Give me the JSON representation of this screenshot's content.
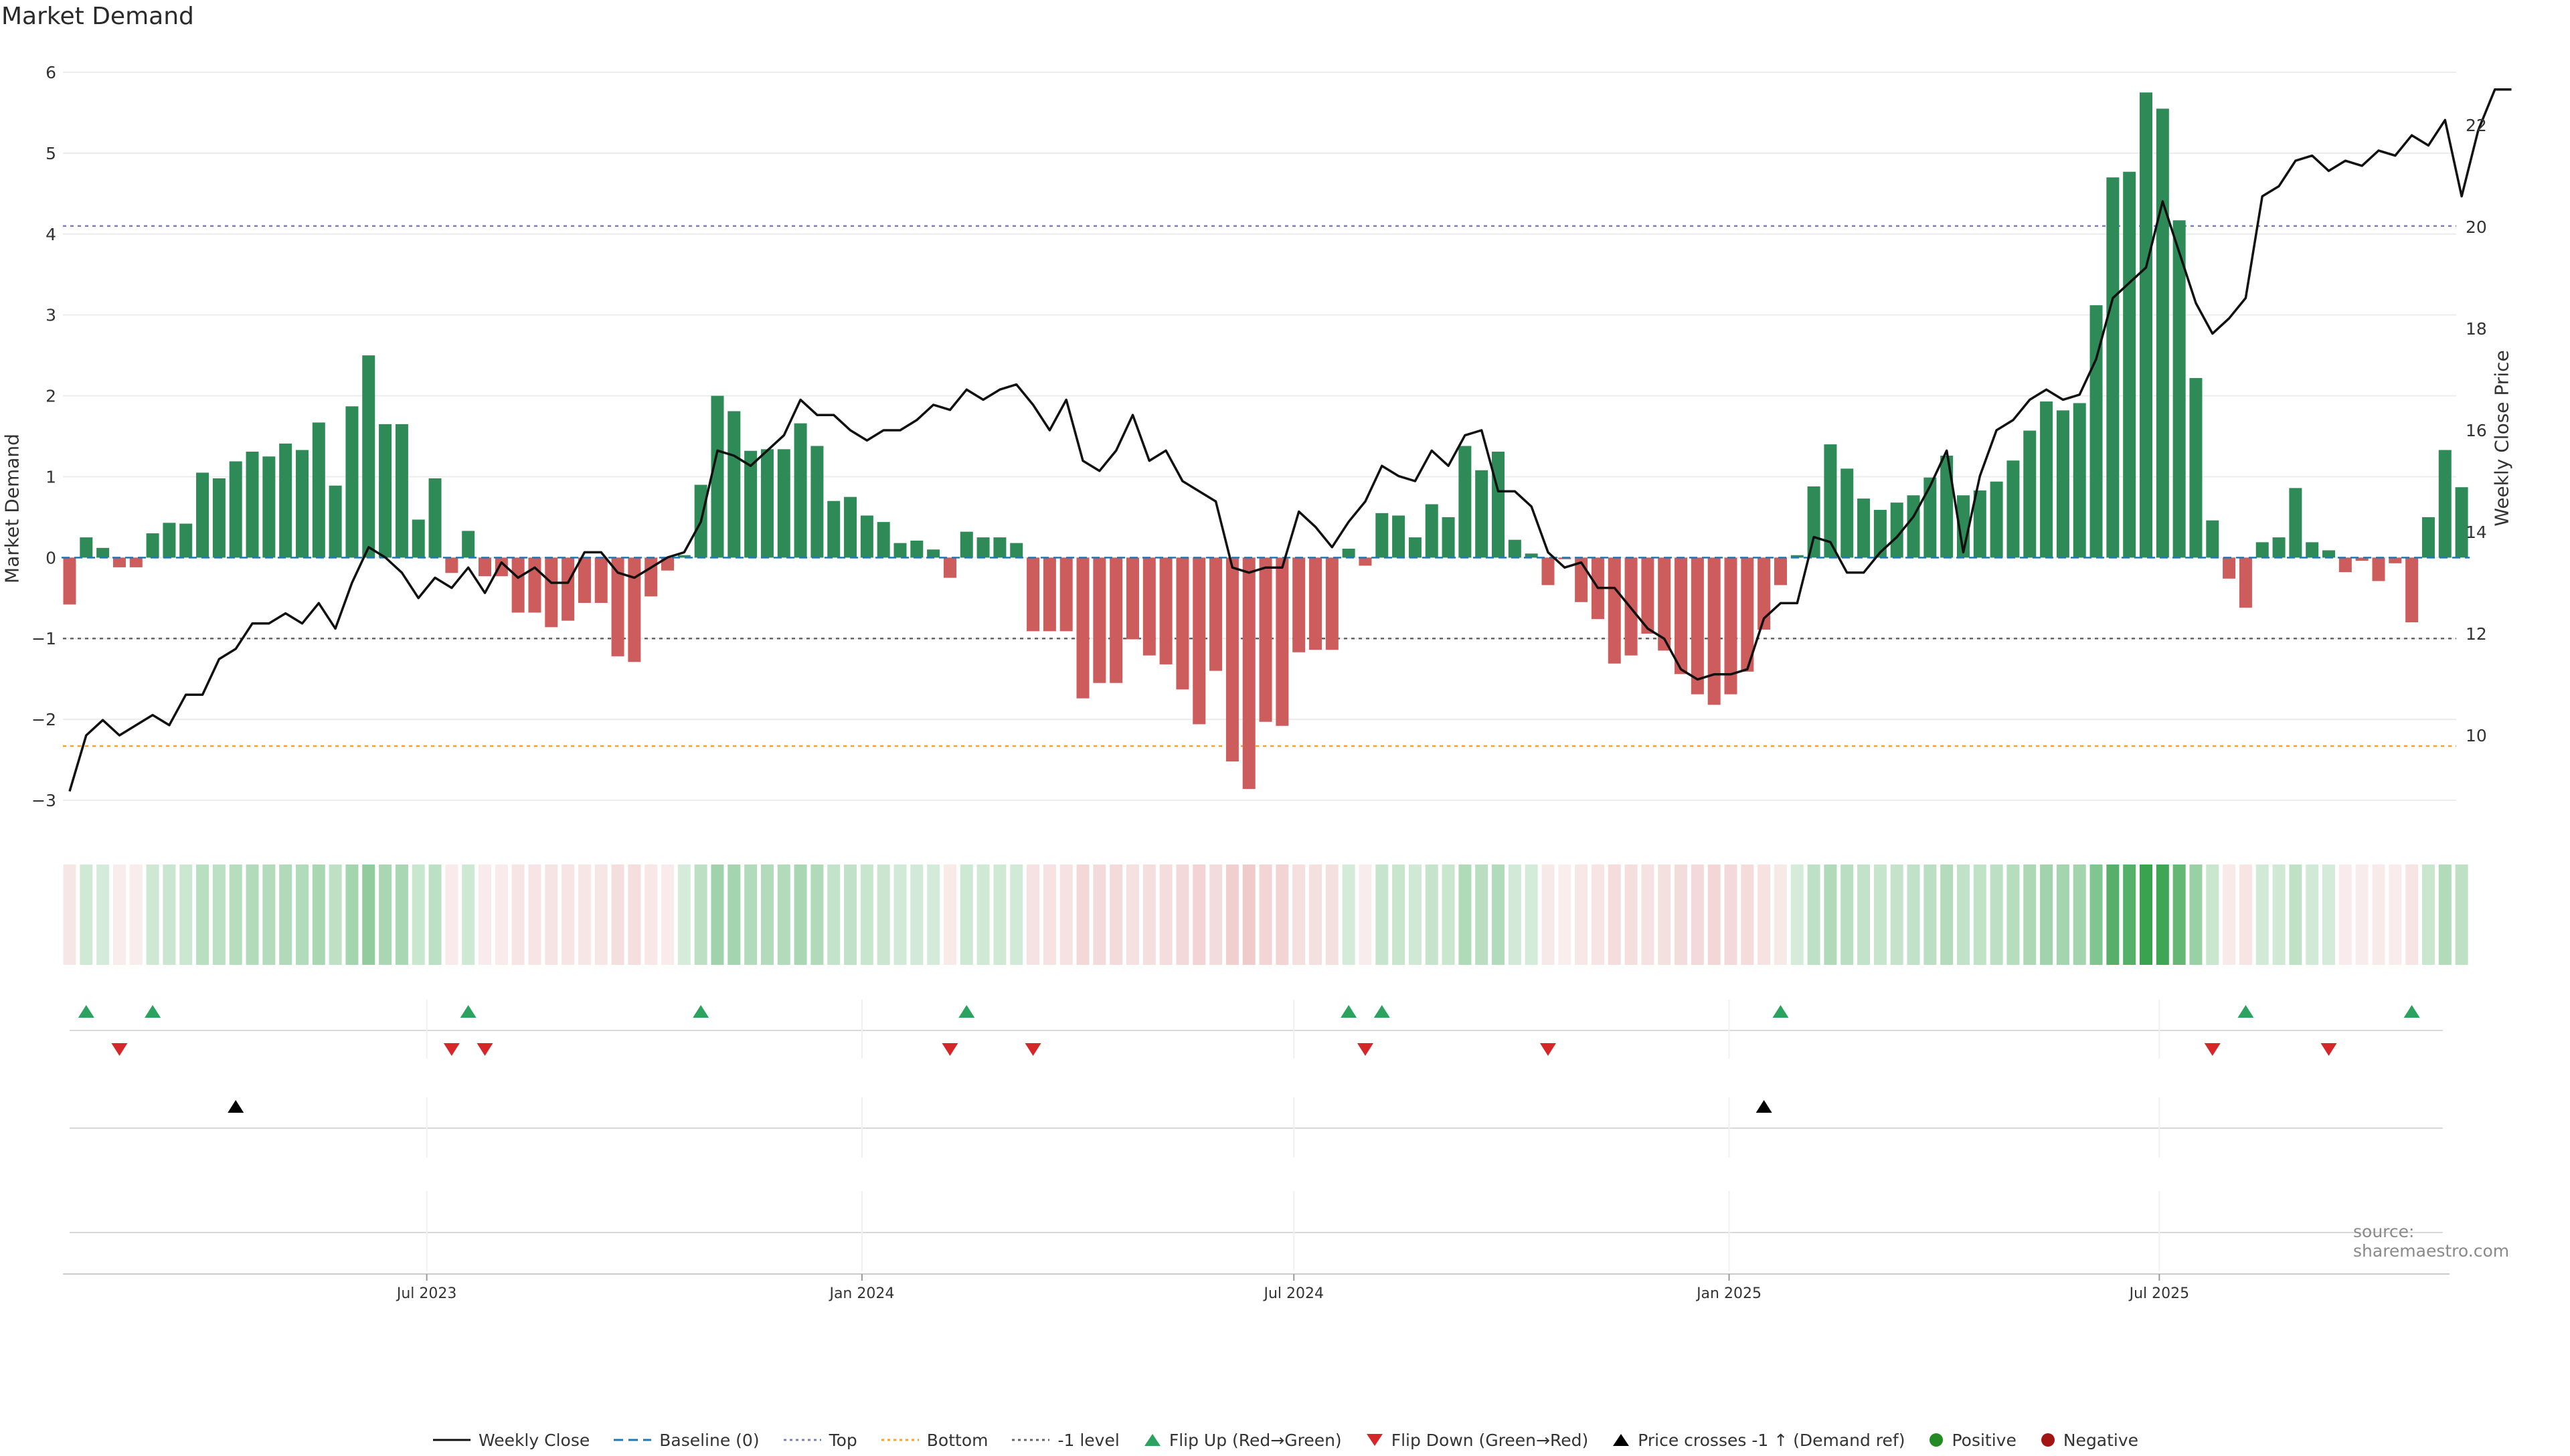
{
  "chart_data": {
    "type": "bar",
    "title": "Market Demand",
    "ylabel": "Market Demand",
    "y2label": "Weekly Close Price",
    "ylim": [
      -3.3,
      6.1
    ],
    "y2lim": [
      8.7,
      23.2
    ],
    "yticks": [
      -3,
      -2,
      -1,
      0,
      1,
      2,
      3,
      4,
      5,
      6
    ],
    "y2ticks": [
      10,
      12,
      14,
      16,
      18,
      20,
      22
    ],
    "xticks": [
      {
        "label": "Jul 2023",
        "index": 21.5
      },
      {
        "label": "Jan 2024",
        "index": 47.7
      },
      {
        "label": "Jul 2024",
        "index": 73.7
      },
      {
        "label": "Jan 2025",
        "index": 99.9
      },
      {
        "label": "Jul 2025",
        "index": 125.8
      }
    ],
    "reference_lines": {
      "top": 4.1,
      "bottom": -2.33,
      "minus_one": -1,
      "baseline": 0
    },
    "demand": [
      -0.58,
      0.25,
      0.12,
      -0.12,
      -0.12,
      0.3,
      0.43,
      0.42,
      1.05,
      0.98,
      1.19,
      1.31,
      1.25,
      1.41,
      1.33,
      1.67,
      0.89,
      1.87,
      2.5,
      1.65,
      1.65,
      0.47,
      0.98,
      -0.19,
      0.33,
      -0.23,
      -0.23,
      -0.68,
      -0.68,
      -0.86,
      -0.78,
      -0.56,
      -0.56,
      -1.22,
      -1.29,
      -0.48,
      -0.16,
      0.03,
      0.9,
      2.0,
      1.81,
      1.32,
      1.34,
      1.34,
      1.66,
      1.38,
      0.7,
      0.75,
      0.52,
      0.44,
      0.18,
      0.21,
      0.1,
      -0.25,
      0.32,
      0.25,
      0.25,
      0.18,
      -0.91,
      -0.91,
      -0.91,
      -1.74,
      -1.55,
      -1.55,
      -1.01,
      -1.21,
      -1.32,
      -1.63,
      -2.06,
      -1.4,
      -2.52,
      -2.86,
      -2.03,
      -2.08,
      -1.17,
      -1.14,
      -1.14,
      0.11,
      -0.1,
      0.55,
      0.52,
      0.25,
      0.66,
      0.5,
      1.38,
      1.08,
      1.31,
      0.22,
      0.05,
      -0.34,
      -0.02,
      -0.55,
      -0.76,
      -1.31,
      -1.21,
      -0.94,
      -1.15,
      -1.44,
      -1.69,
      -1.82,
      -1.69,
      -1.41,
      -0.89,
      -0.34,
      0.03,
      0.88,
      1.4,
      1.1,
      0.73,
      0.59,
      0.68,
      0.77,
      0.99,
      1.26,
      0.77,
      0.83,
      0.94,
      1.2,
      1.57,
      1.93,
      1.82,
      1.91,
      3.12,
      4.7,
      4.77,
      5.75,
      5.55,
      4.17,
      2.22,
      0.46,
      -0.26,
      -0.62,
      0.19,
      0.25,
      0.86,
      0.19,
      0.09,
      -0.18,
      -0.04,
      -0.29,
      -0.07,
      -0.8,
      0.5,
      1.33,
      0.87
    ],
    "close": [
      8.9,
      10.0,
      10.3,
      10.0,
      10.2,
      10.4,
      10.2,
      10.8,
      10.8,
      11.5,
      11.7,
      12.2,
      12.2,
      12.4,
      12.2,
      12.6,
      12.1,
      13.0,
      13.7,
      13.5,
      13.2,
      12.7,
      13.1,
      12.9,
      13.3,
      12.8,
      13.4,
      13.1,
      13.3,
      13.0,
      13.0,
      13.6,
      13.6,
      13.2,
      13.1,
      13.3,
      13.5,
      13.6,
      14.2,
      15.6,
      15.5,
      15.3,
      15.6,
      15.9,
      16.6,
      16.3,
      16.3,
      16.0,
      15.8,
      16.0,
      16.0,
      16.2,
      16.5,
      16.4,
      16.8,
      16.6,
      16.8,
      16.9,
      16.5,
      16.0,
      16.6,
      15.4,
      15.2,
      15.6,
      16.3,
      15.4,
      15.6,
      15.0,
      14.8,
      14.6,
      13.3,
      13.2,
      13.3,
      13.3,
      14.4,
      14.1,
      13.7,
      14.2,
      14.6,
      15.3,
      15.1,
      15.0,
      15.6,
      15.3,
      15.9,
      16.0,
      14.8,
      14.8,
      14.5,
      13.6,
      13.3,
      13.4,
      12.9,
      12.9,
      12.5,
      12.1,
      11.9,
      11.3,
      11.1,
      11.2,
      11.2,
      11.3,
      12.3,
      12.6,
      12.6,
      13.9,
      13.8,
      13.2,
      13.2,
      13.6,
      13.9,
      14.3,
      14.9,
      15.6,
      13.6,
      15.1,
      16.0,
      16.2,
      16.6,
      16.8,
      16.6,
      16.7,
      17.4,
      18.6,
      18.9,
      19.2,
      20.5,
      19.5,
      18.5,
      17.9,
      18.2,
      18.6,
      20.6,
      20.8,
      21.3,
      21.4,
      21.1,
      21.3,
      21.2,
      21.5,
      21.4,
      21.8,
      21.6,
      22.1,
      20.6,
      21.9,
      22.7,
      22.7
    ],
    "flip_up": [
      1,
      5,
      24,
      38,
      54,
      77,
      79,
      103,
      131,
      141
    ],
    "flip_down": [
      3,
      23,
      25,
      53,
      58,
      78,
      89,
      129,
      136
    ],
    "price_cross": [
      10,
      102
    ],
    "series_labels": {
      "weekly_close": "Weekly Close",
      "baseline": "Baseline (0)",
      "top": "Top",
      "bottom": "Bottom",
      "minus_one": "-1 level",
      "flip_up": "Flip Up (Red→Green)",
      "flip_down": "Flip Down (Green→Red)",
      "price_cross": "Price crosses -1 ↑ (Demand ref)",
      "positive": "Positive",
      "negative": "Negative"
    },
    "colors": {
      "positive": "#2e8b57",
      "negative": "#cd5c5c",
      "close": "#111111",
      "baseline": "#1f77b4",
      "top": "#7f7fbf",
      "bottom": "#ff9f1a",
      "minus_one": "#666666",
      "flip_up": "#2ca25f",
      "flip_down": "#d62728",
      "price_cross": "#000000",
      "legend_positive": "#228b22",
      "legend_negative": "#a31515"
    }
  },
  "source": "source: sharemaestro.com"
}
